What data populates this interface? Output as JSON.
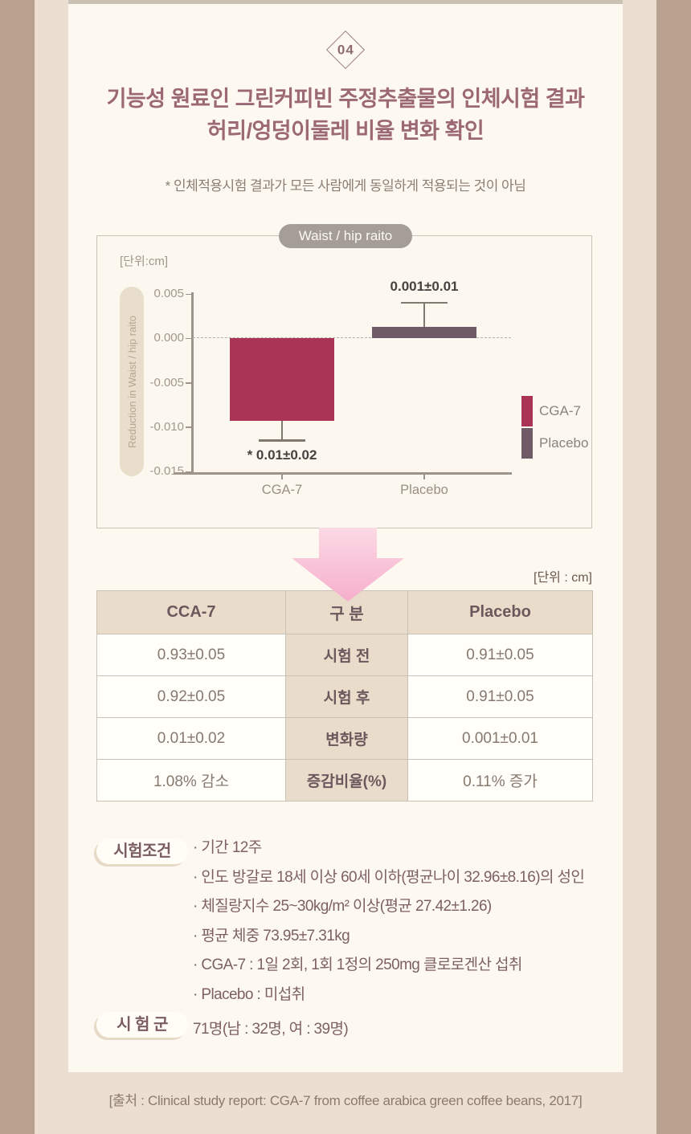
{
  "page": {
    "badge": "04",
    "title_line1": "기능성 원료인 그린커피빈 주정추출물의 인체시험 결과",
    "title_line2": "허리/엉덩이둘레 비율 변화 확인",
    "note": "* 인체적용시험 결과가 모든 사람에게 동일하게 적용되는 것이 아님",
    "source": "[출처 : Clinical study report: CGA-7 from coffee arabica green coffee beans, 2017]"
  },
  "colors": {
    "accent_crimson": "#a93455",
    "accent_taupe": "#6f5b65",
    "card_cream": "#fdf9f0",
    "outer_tan": "#b9a18f",
    "band_beige": "#ecdfd1",
    "table_beige": "#e9dccb",
    "arrow_pink": "#f7bcd3"
  },
  "chart_data": {
    "type": "bar",
    "title": "Waist / hip raito",
    "unit_label": "[단위:cm]",
    "ylabel": "Reduction in Waist / hip raito",
    "categories": [
      "CGA-7",
      "Placebo"
    ],
    "values": [
      -0.0093,
      0.0013
    ],
    "error_ends": [
      -0.0115,
      0.004
    ],
    "annotations": [
      "* 0.01±0.02",
      "0.001±0.01"
    ],
    "ytick_labels": [
      "0.005",
      "0.000",
      "-0.005",
      "-0.010",
      "-0.015"
    ],
    "yticks": [
      0.005,
      0.0,
      -0.005,
      -0.01,
      -0.015
    ],
    "ylim": [
      -0.015,
      0.005
    ],
    "grid": false,
    "legend_position": "right",
    "legend": [
      {
        "label": "CGA-7",
        "color": "#a93455"
      },
      {
        "label": "Placebo",
        "color": "#6f5b65"
      }
    ],
    "bar_colors": [
      "#a93455",
      "#6f5b65"
    ]
  },
  "table": {
    "unit_label": "[단위 : cm]",
    "headers": [
      "CCA-7",
      "구 분",
      "Placebo"
    ],
    "rows": [
      [
        "0.93±0.05",
        "시험 전",
        "0.91±0.05"
      ],
      [
        "0.92±0.05",
        "시험 후",
        "0.91±0.05"
      ],
      [
        "0.01±0.02",
        "변화량",
        "0.001±0.01"
      ],
      [
        "1.08% 감소",
        "증감비율(%)",
        "0.11% 증가"
      ]
    ]
  },
  "conditions": {
    "label": "시험조건",
    "items": [
      "· 기간 12주",
      "· 인도 방갈로 18세 이상 60세 이하(평균나이 32.96±8.16)의 성인",
      "· 체질랑지수 25~30kg/m² 이상(평균 27.42±1.26)",
      "· 평균 체중 73.95±7.31kg",
      "· CGA-7 : 1일 2회, 1회 1정의 250mg 클로로겐산 섭취",
      "· Placebo : 미섭취"
    ]
  },
  "test_group": {
    "label": "시 험 군",
    "value": "71명(남 : 32명, 여 : 39명)"
  }
}
